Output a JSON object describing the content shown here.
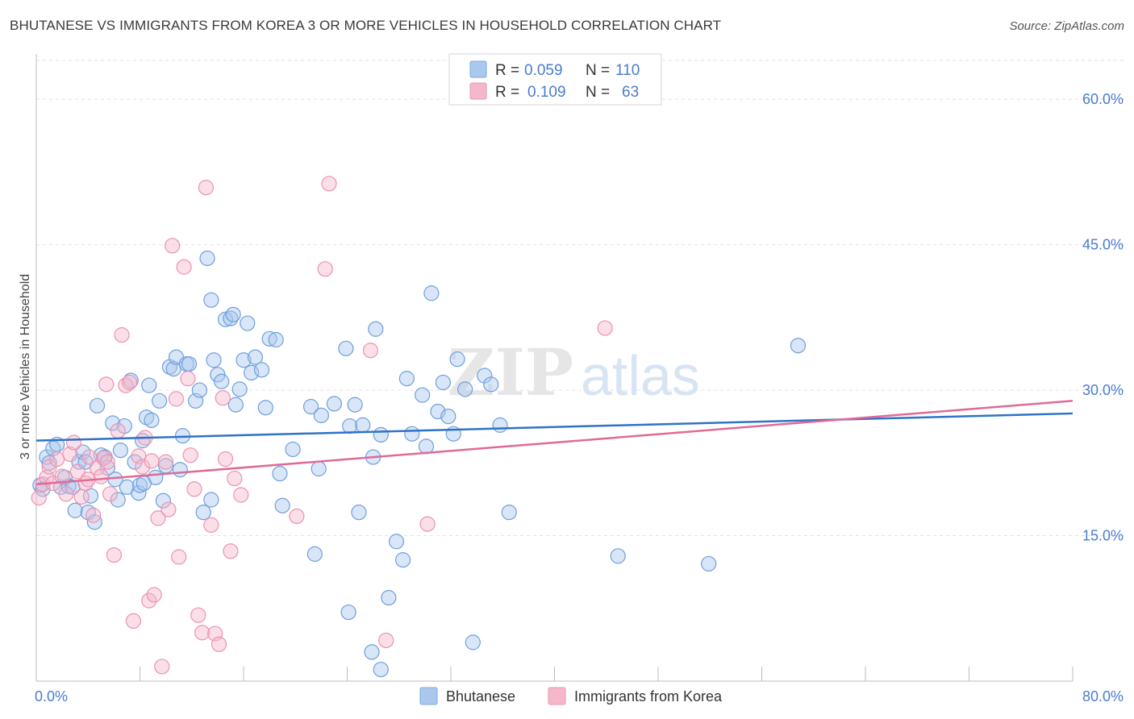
{
  "title": "BHUTANESE VS IMMIGRANTS FROM KOREA 3 OR MORE VEHICLES IN HOUSEHOLD CORRELATION CHART",
  "source": "Source: ZipAtlas.com",
  "watermark": {
    "zip": "ZIP",
    "atlas": "atlas"
  },
  "legend_top": [
    {
      "r_label": "R =",
      "r_value": "0.059",
      "n_label": "N =",
      "n_value": "110",
      "color": "#a9c8ee"
    },
    {
      "r_label": "R =",
      "r_value": "0.109",
      "n_label": "N =",
      "n_value": "63",
      "color": "#f5b8cb"
    }
  ],
  "legend_bottom": [
    {
      "label": "Bhutanese",
      "color": "#a9c8ee"
    },
    {
      "label": "Immigrants from Korea",
      "color": "#f5b8cb"
    }
  ],
  "chart_data": {
    "type": "scatter",
    "title": "BHUTANESE VS IMMIGRANTS FROM KOREA 3 OR MORE VEHICLES IN HOUSEHOLD CORRELATION CHART",
    "xlabel": "",
    "ylabel": "3 or more Vehicles in Household",
    "xlim": [
      0,
      80
    ],
    "ylim": [
      0,
      64
    ],
    "x_tick_labels": [
      "0.0%",
      "80.0%"
    ],
    "y_ticks": [
      15,
      30,
      45,
      60
    ],
    "y_tick_labels": [
      "15.0%",
      "30.0%",
      "45.0%",
      "60.0%"
    ],
    "grid": true,
    "legend_placement": "top-center",
    "series": [
      {
        "name": "Bhutanese",
        "color": "#6f9fdc",
        "trend": [
          [
            0,
            24.8
          ],
          [
            80,
            27.6
          ]
        ],
        "points": [
          [
            0.3,
            20.2
          ],
          [
            0.5,
            19.8
          ],
          [
            0.8,
            23.1
          ],
          [
            1.0,
            22.5
          ],
          [
            1.3,
            24.0
          ],
          [
            1.6,
            24.4
          ],
          [
            1.9,
            20.0
          ],
          [
            2.2,
            21.0
          ],
          [
            2.5,
            20.1
          ],
          [
            2.8,
            20.0
          ],
          [
            3.0,
            17.6
          ],
          [
            3.3,
            22.6
          ],
          [
            3.6,
            23.6
          ],
          [
            3.8,
            22.6
          ],
          [
            4.0,
            17.4
          ],
          [
            4.2,
            19.1
          ],
          [
            4.5,
            16.4
          ],
          [
            4.7,
            28.4
          ],
          [
            5.0,
            23.3
          ],
          [
            5.3,
            23.1
          ],
          [
            5.5,
            22.0
          ],
          [
            5.9,
            26.6
          ],
          [
            6.1,
            20.8
          ],
          [
            6.5,
            23.8
          ],
          [
            6.8,
            26.3
          ],
          [
            7.0,
            20.0
          ],
          [
            7.3,
            31.0
          ],
          [
            7.6,
            22.6
          ],
          [
            7.9,
            19.4
          ],
          [
            8.0,
            20.2
          ],
          [
            8.2,
            24.8
          ],
          [
            8.5,
            27.2
          ],
          [
            8.7,
            30.5
          ],
          [
            8.9,
            26.9
          ],
          [
            9.2,
            21.0
          ],
          [
            9.5,
            28.9
          ],
          [
            9.8,
            18.6
          ],
          [
            10.0,
            22.2
          ],
          [
            10.3,
            32.4
          ],
          [
            10.6,
            32.2
          ],
          [
            10.8,
            33.4
          ],
          [
            11.1,
            21.8
          ],
          [
            11.3,
            25.3
          ],
          [
            11.6,
            32.7
          ],
          [
            11.8,
            32.7
          ],
          [
            12.3,
            28.9
          ],
          [
            12.6,
            30.0
          ],
          [
            12.9,
            17.4
          ],
          [
            13.2,
            43.6
          ],
          [
            13.5,
            18.7
          ],
          [
            13.7,
            33.1
          ],
          [
            14.0,
            31.6
          ],
          [
            14.3,
            30.9
          ],
          [
            14.6,
            37.3
          ],
          [
            15.0,
            37.4
          ],
          [
            15.2,
            37.8
          ],
          [
            15.4,
            28.5
          ],
          [
            15.7,
            30.1
          ],
          [
            16.0,
            33.1
          ],
          [
            16.3,
            36.9
          ],
          [
            16.6,
            31.8
          ],
          [
            16.9,
            33.4
          ],
          [
            17.4,
            32.1
          ],
          [
            17.7,
            28.2
          ],
          [
            18.0,
            35.3
          ],
          [
            18.5,
            35.2
          ],
          [
            18.8,
            21.4
          ],
          [
            19.0,
            18.1
          ],
          [
            19.8,
            23.9
          ],
          [
            21.2,
            28.3
          ],
          [
            21.5,
            13.1
          ],
          [
            21.8,
            21.9
          ],
          [
            22.0,
            27.4
          ],
          [
            23.0,
            28.6
          ],
          [
            23.9,
            34.3
          ],
          [
            24.2,
            26.3
          ],
          [
            24.6,
            28.5
          ],
          [
            24.9,
            17.4
          ],
          [
            25.2,
            26.4
          ],
          [
            25.9,
            3.0
          ],
          [
            26.0,
            23.1
          ],
          [
            26.2,
            36.3
          ],
          [
            26.6,
            25.4
          ],
          [
            27.2,
            8.6
          ],
          [
            27.8,
            14.4
          ],
          [
            28.3,
            12.5
          ],
          [
            28.6,
            31.2
          ],
          [
            29.0,
            25.5
          ],
          [
            29.8,
            29.5
          ],
          [
            30.1,
            24.2
          ],
          [
            30.5,
            40.0
          ],
          [
            31.0,
            27.8
          ],
          [
            31.4,
            30.8
          ],
          [
            31.8,
            27.3
          ],
          [
            32.2,
            25.5
          ],
          [
            32.5,
            33.2
          ],
          [
            33.1,
            30.1
          ],
          [
            33.7,
            4.0
          ],
          [
            34.6,
            31.5
          ],
          [
            35.1,
            30.6
          ],
          [
            35.8,
            26.4
          ],
          [
            36.5,
            17.4
          ],
          [
            26.6,
            1.2
          ],
          [
            24.1,
            7.1
          ],
          [
            44.9,
            12.9
          ],
          [
            51.9,
            12.1
          ],
          [
            58.8,
            34.6
          ],
          [
            13.5,
            39.3
          ],
          [
            8.3,
            20.4
          ],
          [
            6.3,
            18.7
          ]
        ]
      },
      {
        "name": "Immigrants from Korea",
        "color": "#ee8fb0",
        "trend": [
          [
            0,
            20.3
          ],
          [
            80,
            28.9
          ]
        ],
        "points": [
          [
            0.2,
            18.9
          ],
          [
            0.5,
            20.3
          ],
          [
            0.8,
            21.0
          ],
          [
            1.0,
            22.1
          ],
          [
            1.3,
            20.4
          ],
          [
            1.6,
            22.9
          ],
          [
            2.0,
            21.1
          ],
          [
            2.3,
            19.3
          ],
          [
            2.6,
            23.4
          ],
          [
            2.9,
            24.6
          ],
          [
            3.2,
            21.6
          ],
          [
            3.5,
            19.0
          ],
          [
            3.8,
            20.4
          ],
          [
            4.1,
            23.1
          ],
          [
            4.4,
            17.1
          ],
          [
            4.7,
            22.0
          ],
          [
            5.0,
            21.1
          ],
          [
            5.2,
            23.0
          ],
          [
            5.4,
            30.6
          ],
          [
            5.7,
            19.3
          ],
          [
            6.0,
            13.0
          ],
          [
            6.3,
            25.8
          ],
          [
            6.6,
            35.7
          ],
          [
            6.9,
            30.5
          ],
          [
            7.2,
            30.8
          ],
          [
            7.5,
            6.2
          ],
          [
            7.9,
            23.2
          ],
          [
            8.2,
            22.1
          ],
          [
            8.4,
            25.1
          ],
          [
            8.7,
            8.3
          ],
          [
            8.9,
            22.7
          ],
          [
            9.1,
            8.9
          ],
          [
            9.4,
            16.8
          ],
          [
            9.7,
            1.5
          ],
          [
            10.0,
            22.6
          ],
          [
            10.2,
            17.7
          ],
          [
            10.5,
            44.9
          ],
          [
            10.8,
            29.1
          ],
          [
            11.0,
            12.8
          ],
          [
            11.4,
            42.7
          ],
          [
            11.7,
            31.2
          ],
          [
            11.9,
            23.3
          ],
          [
            12.2,
            19.8
          ],
          [
            12.5,
            6.8
          ],
          [
            12.8,
            5.0
          ],
          [
            13.1,
            50.9
          ],
          [
            13.5,
            16.1
          ],
          [
            13.8,
            4.9
          ],
          [
            14.1,
            3.8
          ],
          [
            14.4,
            29.2
          ],
          [
            14.6,
            22.9
          ],
          [
            15.0,
            13.4
          ],
          [
            15.3,
            20.9
          ],
          [
            15.8,
            19.2
          ],
          [
            20.1,
            17.0
          ],
          [
            22.3,
            42.5
          ],
          [
            22.6,
            51.3
          ],
          [
            25.8,
            34.1
          ],
          [
            27.0,
            4.2
          ],
          [
            30.2,
            16.2
          ],
          [
            43.9,
            36.4
          ],
          [
            5.5,
            22.6
          ],
          [
            4.0,
            20.8
          ]
        ]
      }
    ]
  }
}
